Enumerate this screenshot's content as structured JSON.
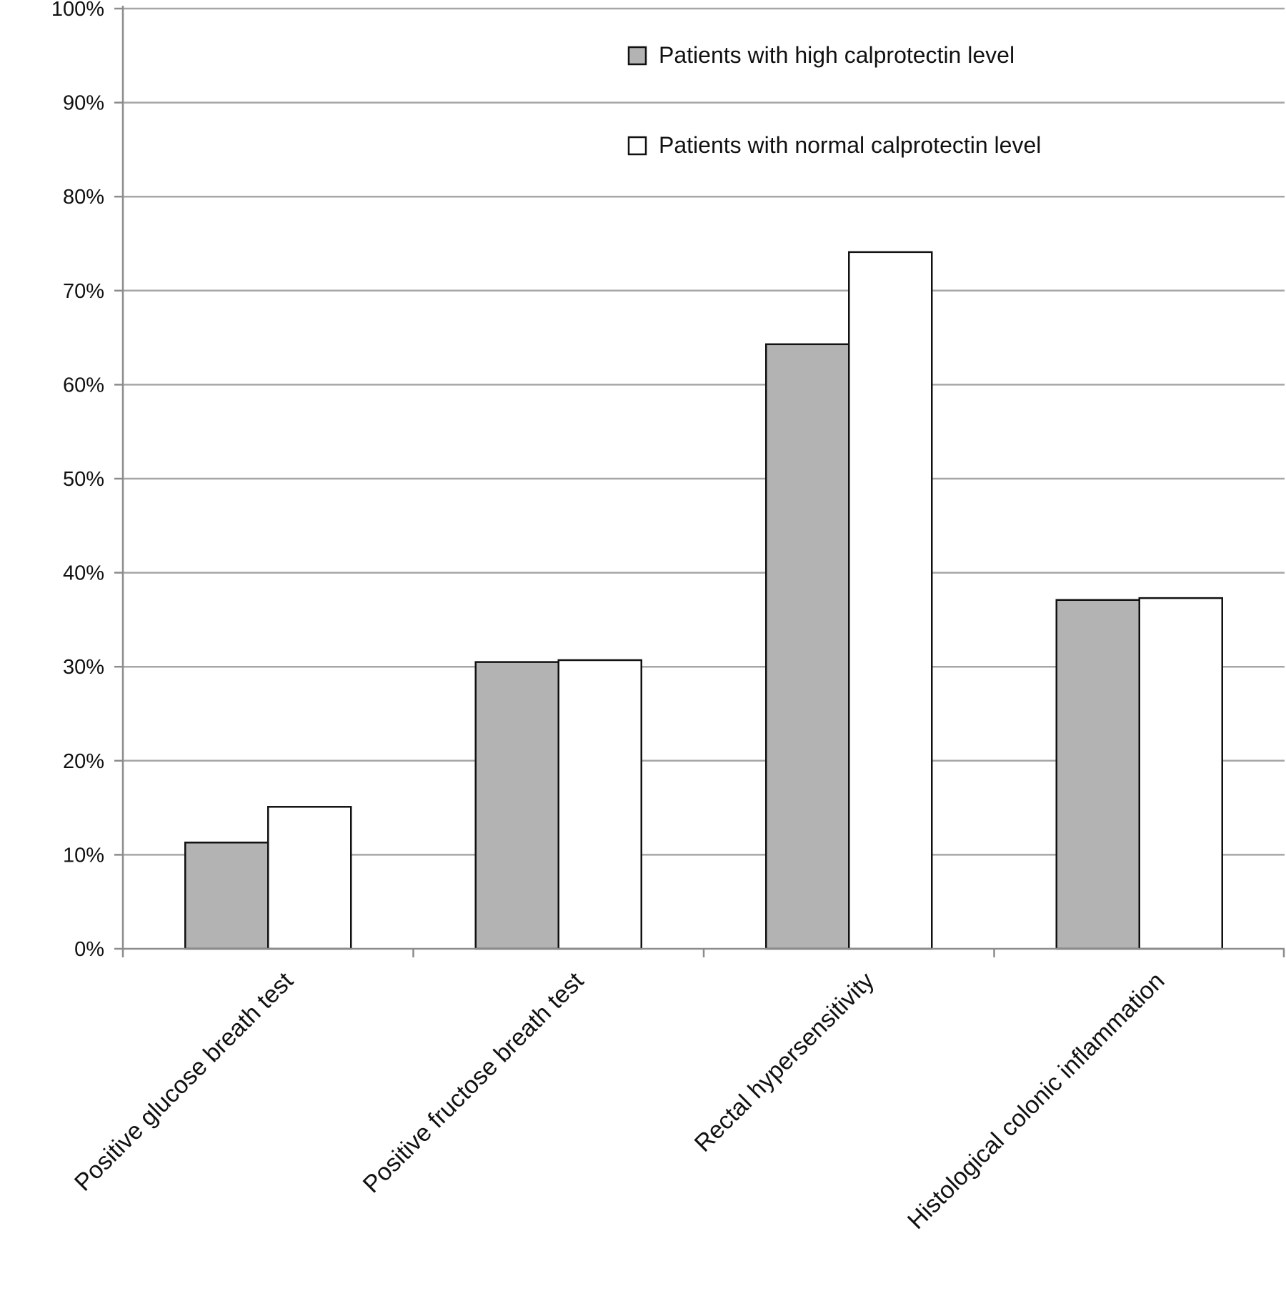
{
  "chart_data": {
    "type": "bar",
    "title": "",
    "xlabel": "",
    "ylabel": "",
    "ylim": [
      0,
      100
    ],
    "y_ticks": [
      "0%",
      "10%",
      "20%",
      "30%",
      "40%",
      "50%",
      "60%",
      "70%",
      "80%",
      "90%",
      "100%"
    ],
    "y_tick_values": [
      0,
      10,
      20,
      30,
      40,
      50,
      60,
      70,
      80,
      90,
      100
    ],
    "grid": true,
    "legend_position": "top-right",
    "categories": [
      "Positive glucose breath test",
      "Positive fructose breath test",
      "Rectal hypersensitivity",
      "Histological colonic inflammation"
    ],
    "series": [
      {
        "name": "Patients with high calprotectin level",
        "color": "#b3b3b3",
        "values": [
          11.3,
          30.5,
          64.3,
          37.1
        ]
      },
      {
        "name": "Patients with normal calprotectin level",
        "color": "#ffffff",
        "values": [
          15.1,
          30.7,
          74.1,
          37.3
        ]
      }
    ]
  }
}
